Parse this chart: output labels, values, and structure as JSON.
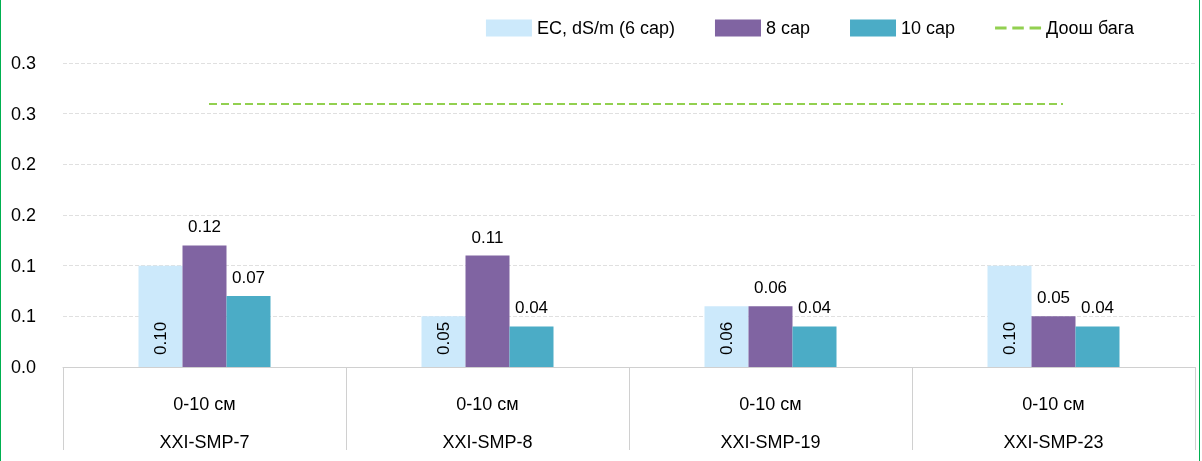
{
  "chart_data": {
    "type": "bar",
    "categories": [
      "0-10 см\nXXI-SMP-7",
      "0-10 см\nXXI-SMP-8",
      "0-10 см\nXXI-SMP-19",
      "0-10 см\nXXI-SMP-23"
    ],
    "series": [
      {
        "name": "EC, dS/m (6 сар)",
        "color": "#cce9fb",
        "values": [
          0.1,
          0.05,
          0.06,
          0.1
        ],
        "value_labels": [
          "0.10",
          "0.05",
          "0.06",
          "0.10"
        ]
      },
      {
        "name": "8 сар",
        "color": "#8064a2",
        "values": [
          0.12,
          0.11,
          0.06,
          0.05
        ],
        "value_labels": [
          "0.12",
          "0.11",
          "0.06",
          "0.05"
        ]
      },
      {
        "name": "10 сар",
        "color": "#4bacc6",
        "values": [
          0.07,
          0.04,
          0.04,
          0.04
        ],
        "value_labels": [
          "0.07",
          "0.04",
          "0.04",
          "0.04"
        ]
      }
    ],
    "ref_lines": [
      {
        "axis": "y",
        "value": 0.26,
        "label": "Доош бага",
        "color": "#92d050",
        "line_style": "dashed"
      }
    ],
    "ylim": [
      0,
      0.3
    ],
    "yticks": [
      {
        "value": 0,
        "label": "0.0"
      },
      {
        "value": 0.05,
        "label": "0.1"
      },
      {
        "value": 0.1,
        "label": "0.1"
      },
      {
        "value": 0.15,
        "label": "0.2"
      },
      {
        "value": 0.2,
        "label": "0.2"
      },
      {
        "value": 0.25,
        "label": "0.3"
      },
      {
        "value": 0.3,
        "label": "0.3"
      }
    ],
    "grid": "y",
    "legend": "top right"
  }
}
